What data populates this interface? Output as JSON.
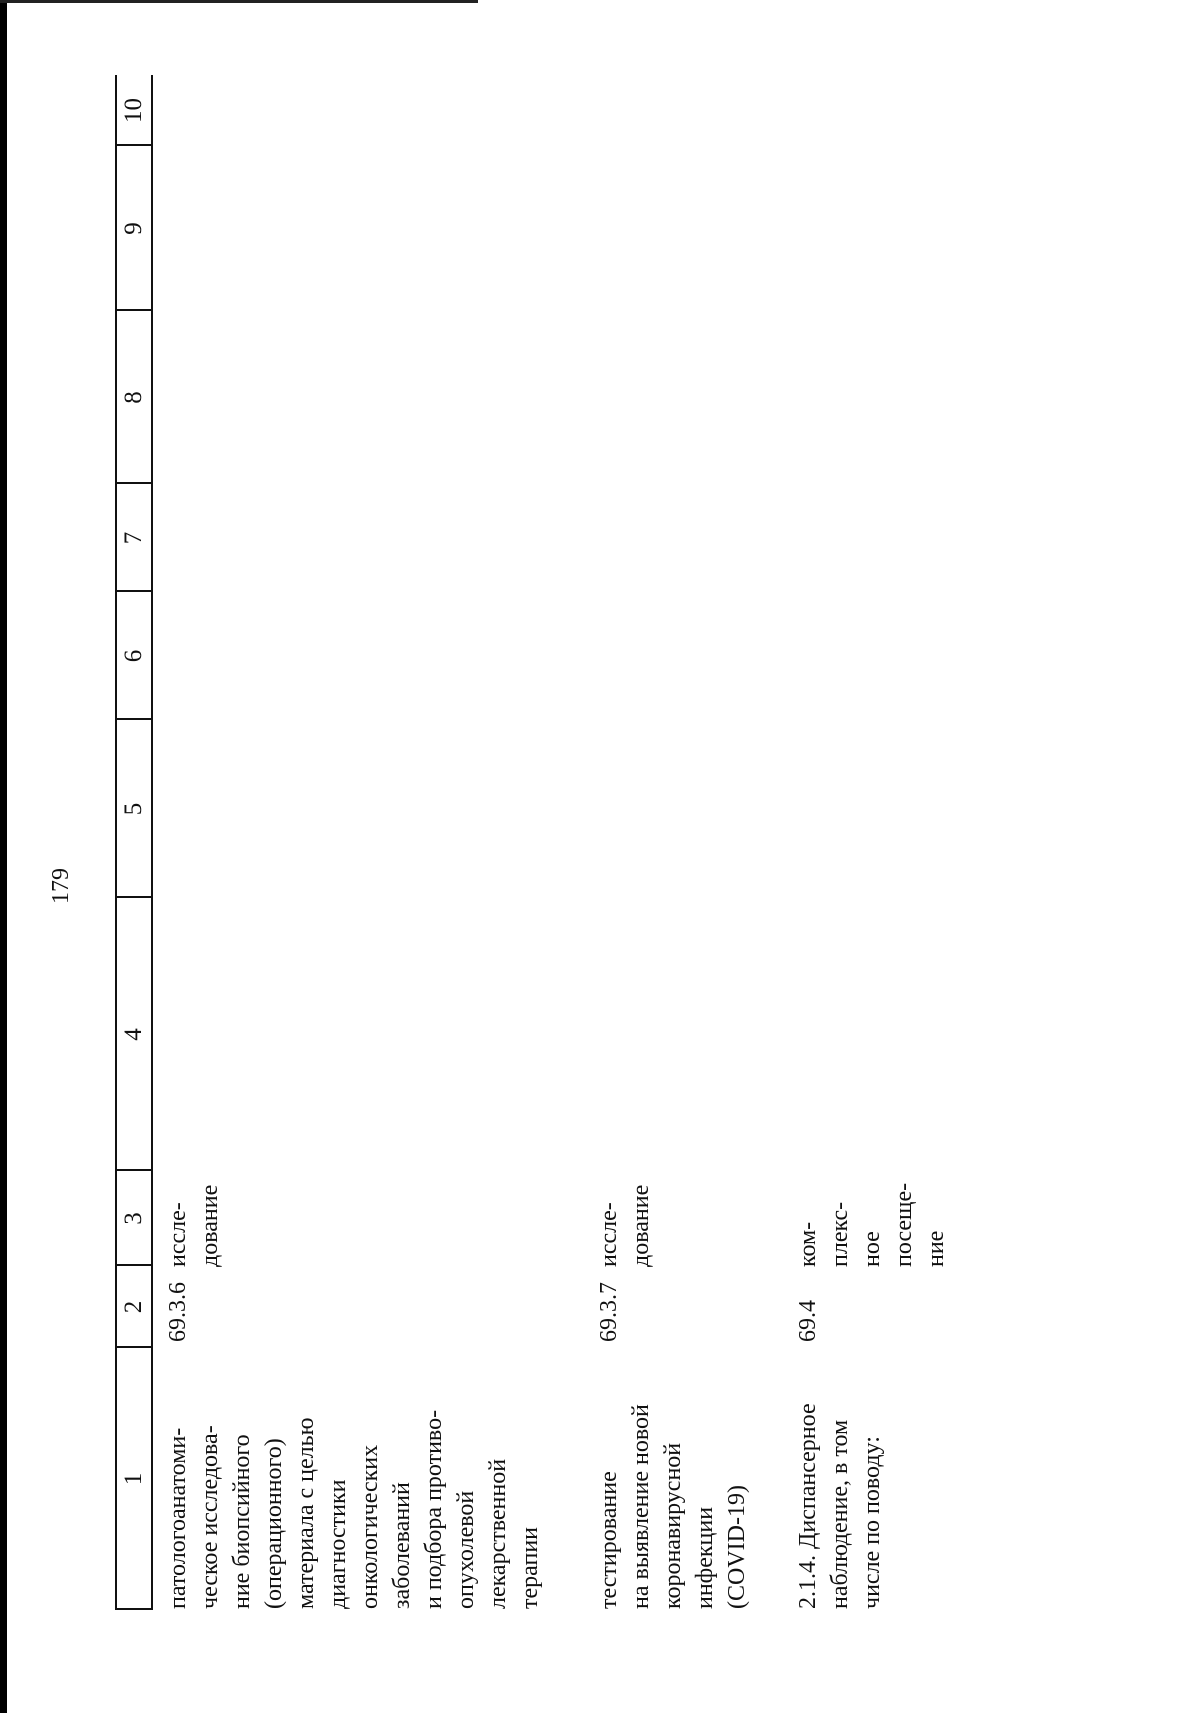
{
  "page_number": "179",
  "table": {
    "column_headers": [
      "1",
      "2",
      "3",
      "4",
      "5",
      "6",
      "7",
      "8",
      "9",
      "10"
    ],
    "rows": [
      {
        "name": "патологоанатоми-\nческое исследова-\nние биопсийного\n(операционного)\nматериала с целью\nдиагностики\nонкологических\nзаболеваний\nи подбора противо-\nопухолевой\nлекарственной\nтерапии",
        "code": "69.3.6",
        "unit": "иссле-\nдование"
      },
      {
        "name": "тестирование\nна выявление новой\nкоронавирусной\nинфекции\n(COVID-19)",
        "code": "69.3.7",
        "unit": "иссле-\nдование"
      },
      {
        "name": "2.1.4. Диспансерное\nнаблюдение, в том\nчисле по поводу:",
        "code": "69.4",
        "unit": "ком-\nплекс-\nное\nпосеще-\nние"
      }
    ]
  }
}
